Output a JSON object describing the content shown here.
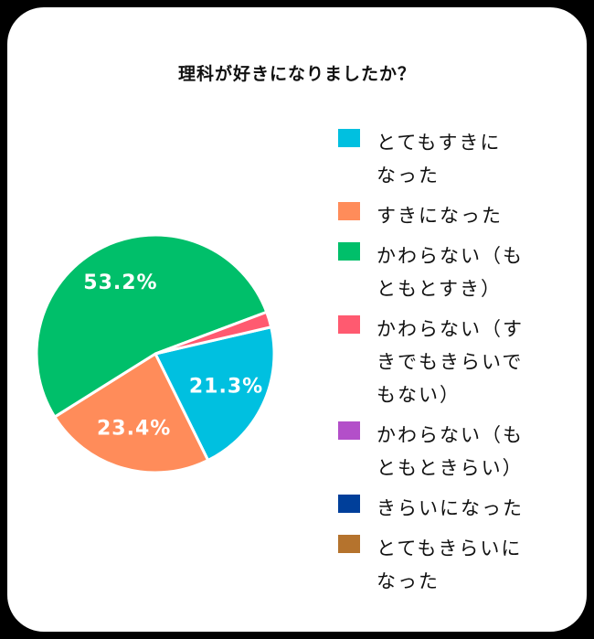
{
  "title": "理科が好きになりましたか？",
  "colors": {
    "background": "#000000",
    "card": "#ffffff",
    "slice_border": "#ffffff",
    "label_text": "#ffffff"
  },
  "chart_data": {
    "type": "pie",
    "title": "理科が好きになりましたか？",
    "legend_position": "right",
    "slices": [
      {
        "label": "とてもすきに\nなった",
        "value": 21.3,
        "color": "#00C0E0",
        "display": "21.3%"
      },
      {
        "label": "すきになった",
        "value": 23.4,
        "color": "#FF8C5A",
        "display": "23.4%"
      },
      {
        "label": "かわらない（も\nともとすき）",
        "value": 53.2,
        "color": "#00BF6A",
        "display": "53.2%"
      },
      {
        "label": "かわらない（す\nきでもきらいで\nもない）",
        "value": 2.1,
        "color": "#FF5A70",
        "display": ""
      },
      {
        "label": "かわらない（も\nともときらい）",
        "value": 0,
        "color": "#B34FC9",
        "display": ""
      },
      {
        "label": "きらいになった",
        "value": 0,
        "color": "#003F9A",
        "display": ""
      },
      {
        "label": "とてもきらいに\nなった",
        "value": 0,
        "color": "#B5732D",
        "display": ""
      }
    ]
  }
}
